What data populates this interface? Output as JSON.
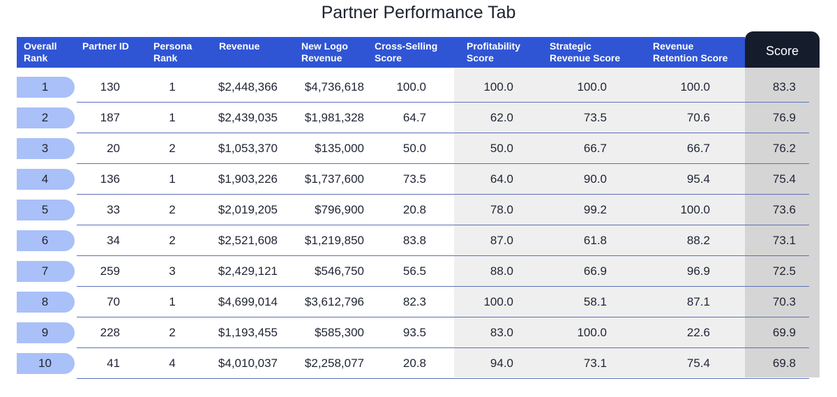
{
  "title": "Partner Performance Tab",
  "headers": [
    {
      "line1": "Overall",
      "line2": "Rank"
    },
    {
      "line1": "Partner ID",
      "line2": ""
    },
    {
      "line1": "Persona",
      "line2": "Rank"
    },
    {
      "line1": "Revenue",
      "line2": ""
    },
    {
      "line1": "New Logo",
      "line2": "Revenue"
    },
    {
      "line1": "Cross-Selling",
      "line2": "Score"
    },
    {
      "line1": "Profitability",
      "line2": "Score"
    },
    {
      "line1": "Strategic",
      "line2": "Revenue Score"
    },
    {
      "line1": "Revenue",
      "line2": "Retention Score"
    }
  ],
  "score_header": "Score",
  "rows": [
    {
      "rank": "1",
      "partner_id": "130",
      "persona_rank": "1",
      "revenue": "$2,448,366",
      "new_logo_revenue": "$4,736,618",
      "cross_selling": "100.0",
      "profitability": "100.0",
      "strategic": "100.0",
      "retention": "100.0",
      "score": "83.3"
    },
    {
      "rank": "2",
      "partner_id": "187",
      "persona_rank": "1",
      "revenue": "$2,439,035",
      "new_logo_revenue": "$1,981,328",
      "cross_selling": "64.7",
      "profitability": "62.0",
      "strategic": "73.5",
      "retention": "70.6",
      "score": "76.9"
    },
    {
      "rank": "3",
      "partner_id": "20",
      "persona_rank": "2",
      "revenue": "$1,053,370",
      "new_logo_revenue": "$135,000",
      "cross_selling": "50.0",
      "profitability": "50.0",
      "strategic": "66.7",
      "retention": "66.7",
      "score": "76.2"
    },
    {
      "rank": "4",
      "partner_id": "136",
      "persona_rank": "1",
      "revenue": "$1,903,226",
      "new_logo_revenue": "$1,737,600",
      "cross_selling": "73.5",
      "profitability": "64.0",
      "strategic": "90.0",
      "retention": "95.4",
      "score": "75.4"
    },
    {
      "rank": "5",
      "partner_id": "33",
      "persona_rank": "2",
      "revenue": "$2,019,205",
      "new_logo_revenue": "$796,900",
      "cross_selling": "20.8",
      "profitability": "78.0",
      "strategic": "99.2",
      "retention": "100.0",
      "score": "73.6"
    },
    {
      "rank": "6",
      "partner_id": "34",
      "persona_rank": "2",
      "revenue": "$2,521,608",
      "new_logo_revenue": "$1,219,850",
      "cross_selling": "83.8",
      "profitability": "87.0",
      "strategic": "61.8",
      "retention": "88.2",
      "score": "73.1"
    },
    {
      "rank": "7",
      "partner_id": "259",
      "persona_rank": "3",
      "revenue": "$2,429,121",
      "new_logo_revenue": "$546,750",
      "cross_selling": "56.5",
      "profitability": "88.0",
      "strategic": "66.9",
      "retention": "96.9",
      "score": "72.5"
    },
    {
      "rank": "8",
      "partner_id": "70",
      "persona_rank": "1",
      "revenue": "$4,699,014",
      "new_logo_revenue": "$3,612,796",
      "cross_selling": "82.3",
      "profitability": "100.0",
      "strategic": "58.1",
      "retention": "87.1",
      "score": "70.3"
    },
    {
      "rank": "9",
      "partner_id": "228",
      "persona_rank": "2",
      "revenue": "$1,193,455",
      "new_logo_revenue": "$585,300",
      "cross_selling": "93.5",
      "profitability": "83.0",
      "strategic": "100.0",
      "retention": "22.6",
      "score": "69.9"
    },
    {
      "rank": "10",
      "partner_id": "41",
      "persona_rank": "4",
      "revenue": "$4,010,037",
      "new_logo_revenue": "$2,258,077",
      "cross_selling": "20.8",
      "profitability": "94.0",
      "strategic": "73.1",
      "retention": "75.4",
      "score": "69.8"
    }
  ],
  "colors": {
    "header_bg": "#2f55d4",
    "score_header_bg": "#151c2c",
    "rank_pill": "#a9c0f8",
    "gray_panel": "#efefef",
    "score_panel": "#d5d5d5",
    "row_divider": "#5c6fb8"
  }
}
